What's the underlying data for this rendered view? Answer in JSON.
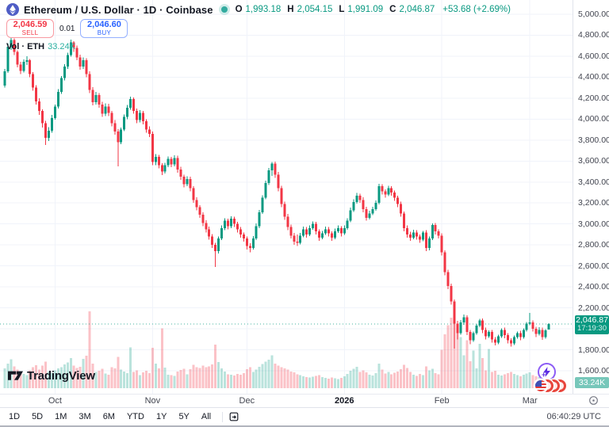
{
  "header": {
    "symbol_title": "Ethereum / U.S. Dollar · 1D · Coinbase",
    "ohlc": [
      {
        "label": "O",
        "value": "1,993.18"
      },
      {
        "label": "H",
        "value": "2,054.15"
      },
      {
        "label": "L",
        "value": "1,991.09"
      },
      {
        "label": "C",
        "value": "2,046.87"
      }
    ],
    "change": "+53.68 (+2.69%)",
    "sell": {
      "price": "2,046.59",
      "label": "SELL"
    },
    "spread": "0.01",
    "buy": {
      "price": "2,046.60",
      "label": "BUY"
    },
    "volume_label": "Vol · ETH",
    "volume_value": "33.24K"
  },
  "price_axis": {
    "badge_price": "2,046.87",
    "badge_countdown": "17:19:30",
    "volume_badge": "33.24K"
  },
  "toolbar": {
    "ranges": [
      "1D",
      "5D",
      "1M",
      "3M",
      "6M",
      "YTD",
      "1Y",
      "5Y",
      "All"
    ],
    "utc_time": "06:40:29 UTC"
  },
  "logo": {
    "text": "TradingView"
  },
  "icons": {
    "symbol": "ethereum-logo",
    "status": "market-open-dot",
    "go_to_date": "calendar-go-to-date",
    "axis_corner": "settings-gear",
    "boost": "lightning-bolt",
    "reactions": "overlapping-red-circles"
  },
  "chart_data": {
    "type": "candlestick+volume",
    "title": "Ethereum / U.S. Dollar",
    "symbol": "ETH/USD",
    "interval": "1D",
    "exchange": "Coinbase",
    "ylim": [
      1381,
      5136
    ],
    "grid": true,
    "style": {
      "up": "#089981",
      "down": "#f23645",
      "vol_up": "rgba(8,153,129,0.28)",
      "vol_down": "rgba(242,54,69,0.30)",
      "grid": "#f0f3fa"
    },
    "yticks": [
      {
        "price": 5000,
        "label": "5,000.00"
      },
      {
        "price": 4800,
        "label": "4,800.00"
      },
      {
        "price": 4600,
        "label": "4,600.00"
      },
      {
        "price": 4400,
        "label": "4,400.00"
      },
      {
        "price": 4200,
        "label": "4,200.00"
      },
      {
        "price": 4000,
        "label": "4,000.00"
      },
      {
        "price": 3800,
        "label": "3,800.00"
      },
      {
        "price": 3600,
        "label": "3,600.00"
      },
      {
        "price": 3400,
        "label": "3,400.00"
      },
      {
        "price": 3200,
        "label": "3,200.00"
      },
      {
        "price": 3000,
        "label": "3,000.00"
      },
      {
        "price": 2800,
        "label": "2,800.00"
      },
      {
        "price": 2600,
        "label": "2,600.00"
      },
      {
        "price": 2400,
        "label": "2,400.00"
      },
      {
        "price": 2200,
        "label": "2,200.00"
      },
      {
        "price": 2000,
        "label": ""
      },
      {
        "price": 1800,
        "label": "1,800.00"
      },
      {
        "price": 1600,
        "label": "1,600.00"
      }
    ],
    "month_ticks": [
      {
        "label": "Oct",
        "index": 16
      },
      {
        "label": "Nov",
        "index": 47
      },
      {
        "label": "Dec",
        "index": 77
      },
      {
        "label": "2026",
        "index": 108,
        "bold": true
      },
      {
        "label": "Feb",
        "index": 139
      },
      {
        "label": "Mar",
        "index": 167
      }
    ],
    "last": {
      "open": 1993.18,
      "high": 2054.15,
      "low": 1991.09,
      "close": 2046.87,
      "volume_k": 33.24
    },
    "marker": {
      "type": "dot",
      "candle_index": 2,
      "color": "#f23645"
    },
    "candles_format": [
      "open",
      "high",
      "low",
      "close",
      "volume_k"
    ],
    "candles": [
      [
        4320,
        4480,
        4300,
        4455,
        58
      ],
      [
        4455,
        4720,
        4440,
        4690,
        72
      ],
      [
        4690,
        4772,
        4660,
        4755,
        85
      ],
      [
        4755,
        4768,
        4610,
        4640,
        64
      ],
      [
        4640,
        4655,
        4495,
        4520,
        55
      ],
      [
        4520,
        4548,
        4430,
        4460,
        47
      ],
      [
        4460,
        4570,
        4445,
        4545,
        42
      ],
      [
        4545,
        4600,
        4515,
        4560,
        38
      ],
      [
        4560,
        4575,
        4400,
        4430,
        52
      ],
      [
        4430,
        4450,
        4270,
        4300,
        61
      ],
      [
        4300,
        4325,
        4140,
        4170,
        67
      ],
      [
        4170,
        4200,
        4040,
        4080,
        54
      ],
      [
        4080,
        4095,
        3920,
        3960,
        66
      ],
      [
        3960,
        3985,
        3755,
        3820,
        78
      ],
      [
        3820,
        3925,
        3790,
        3890,
        49
      ],
      [
        3890,
        4040,
        3870,
        4010,
        45
      ],
      [
        4010,
        4140,
        3995,
        4120,
        52
      ],
      [
        4120,
        4285,
        4100,
        4260,
        58
      ],
      [
        4260,
        4410,
        4240,
        4390,
        62
      ],
      [
        4390,
        4525,
        4370,
        4500,
        70
      ],
      [
        4500,
        4635,
        4480,
        4610,
        75
      ],
      [
        4610,
        4760,
        4595,
        4730,
        88
      ],
      [
        4730,
        4745,
        4640,
        4680,
        66
      ],
      [
        4680,
        4700,
        4560,
        4590,
        59
      ],
      [
        4590,
        4615,
        4470,
        4500,
        63
      ],
      [
        4500,
        4590,
        4480,
        4560,
        86
      ],
      [
        4560,
        4580,
        4400,
        4430,
        95
      ],
      [
        4430,
        4455,
        4250,
        4280,
        225
      ],
      [
        4280,
        4305,
        4130,
        4160,
        72
      ],
      [
        4160,
        4260,
        4140,
        4230,
        48
      ],
      [
        4230,
        4250,
        4110,
        4140,
        51
      ],
      [
        4140,
        4165,
        4020,
        4050,
        57
      ],
      [
        4050,
        4150,
        4030,
        4120,
        43
      ],
      [
        4120,
        4145,
        4030,
        4060,
        39
      ],
      [
        4060,
        4080,
        3930,
        3960,
        61
      ],
      [
        3960,
        3990,
        3850,
        3880,
        58
      ],
      [
        3880,
        3905,
        3550,
        3780,
        92
      ],
      [
        3780,
        3920,
        3760,
        3900,
        54
      ],
      [
        3900,
        4045,
        3885,
        4020,
        49
      ],
      [
        4020,
        4135,
        4000,
        4110,
        44
      ],
      [
        4110,
        4215,
        4090,
        4190,
        120
      ],
      [
        4190,
        4205,
        4050,
        4080,
        47
      ],
      [
        4080,
        4100,
        3960,
        3990,
        52
      ],
      [
        3990,
        4085,
        3970,
        4060,
        38
      ],
      [
        4060,
        4080,
        3950,
        3980,
        46
      ],
      [
        3980,
        4000,
        3870,
        3900,
        51
      ],
      [
        3900,
        3930,
        3830,
        3860,
        44
      ],
      [
        3860,
        3880,
        3560,
        3590,
        118
      ],
      [
        3590,
        3665,
        3560,
        3640,
        72
      ],
      [
        3640,
        3660,
        3530,
        3560,
        58
      ],
      [
        3560,
        3580,
        3465,
        3500,
        175
      ],
      [
        3500,
        3585,
        3480,
        3560,
        60
      ],
      [
        3560,
        3645,
        3540,
        3620,
        40
      ],
      [
        3620,
        3640,
        3540,
        3570,
        38
      ],
      [
        3570,
        3655,
        3550,
        3630,
        36
      ],
      [
        3630,
        3650,
        3490,
        3520,
        49
      ],
      [
        3520,
        3545,
        3420,
        3450,
        53
      ],
      [
        3450,
        3470,
        3350,
        3380,
        57
      ],
      [
        3380,
        3455,
        3360,
        3430,
        41
      ],
      [
        3430,
        3450,
        3310,
        3340,
        56
      ],
      [
        3340,
        3360,
        3200,
        3230,
        68
      ],
      [
        3230,
        3255,
        3130,
        3160,
        62
      ],
      [
        3160,
        3180,
        3060,
        3090,
        59
      ],
      [
        3090,
        3110,
        2980,
        3010,
        66
      ],
      [
        3010,
        3035,
        2920,
        2950,
        61
      ],
      [
        2950,
        2975,
        2850,
        2880,
        64
      ],
      [
        2880,
        2905,
        2770,
        2800,
        70
      ],
      [
        2800,
        2820,
        2590,
        2740,
        128
      ],
      [
        2740,
        2880,
        2720,
        2860,
        77
      ],
      [
        2860,
        2985,
        2845,
        2960,
        58
      ],
      [
        2960,
        3055,
        2940,
        3030,
        49
      ],
      [
        3030,
        3050,
        2950,
        2980,
        41
      ],
      [
        2980,
        3075,
        2960,
        3050,
        39
      ],
      [
        3050,
        3070,
        2970,
        3000,
        37
      ],
      [
        3000,
        3020,
        2920,
        2950,
        42
      ],
      [
        2950,
        2970,
        2870,
        2900,
        40
      ],
      [
        2900,
        2920,
        2830,
        2860,
        44
      ],
      [
        2860,
        2880,
        2755,
        2790,
        56
      ],
      [
        2790,
        2815,
        2730,
        2770,
        62
      ],
      [
        2770,
        2885,
        2755,
        2860,
        48
      ],
      [
        2860,
        3005,
        2845,
        2980,
        54
      ],
      [
        2980,
        3135,
        2960,
        3110,
        63
      ],
      [
        3110,
        3275,
        3095,
        3250,
        71
      ],
      [
        3250,
        3415,
        3235,
        3390,
        78
      ],
      [
        3390,
        3535,
        3370,
        3510,
        84
      ],
      [
        3510,
        3590,
        3460,
        3575,
        96
      ],
      [
        3575,
        3595,
        3440,
        3470,
        72
      ],
      [
        3470,
        3495,
        3310,
        3340,
        66
      ],
      [
        3340,
        3365,
        3160,
        3190,
        61
      ],
      [
        3190,
        3215,
        3040,
        3070,
        58
      ],
      [
        3070,
        3095,
        2940,
        2970,
        54
      ],
      [
        2970,
        2995,
        2860,
        2890,
        49
      ],
      [
        2890,
        2915,
        2800,
        2830,
        46
      ],
      [
        2830,
        2900,
        2790,
        2820,
        41
      ],
      [
        2820,
        2915,
        2805,
        2890,
        38
      ],
      [
        2890,
        2975,
        2875,
        2950,
        35
      ],
      [
        2950,
        2970,
        2870,
        2900,
        33
      ],
      [
        2900,
        2985,
        2885,
        2960,
        31
      ],
      [
        2960,
        3025,
        2945,
        3000,
        34
      ],
      [
        3000,
        3020,
        2900,
        2930,
        36
      ],
      [
        2930,
        2950,
        2840,
        2870,
        38
      ],
      [
        2870,
        2935,
        2855,
        2910,
        32
      ],
      [
        2910,
        2975,
        2895,
        2950,
        30
      ],
      [
        2950,
        2970,
        2880,
        2910,
        28
      ],
      [
        2910,
        2930,
        2840,
        2870,
        31
      ],
      [
        2870,
        2955,
        2855,
        2930,
        29
      ],
      [
        2930,
        2985,
        2915,
        2960,
        27
      ],
      [
        2960,
        2980,
        2880,
        2910,
        30
      ],
      [
        2910,
        2985,
        2895,
        2960,
        35
      ],
      [
        2960,
        3055,
        2945,
        3030,
        42
      ],
      [
        3030,
        3155,
        3015,
        3130,
        51
      ],
      [
        3130,
        3235,
        3115,
        3210,
        57
      ],
      [
        3210,
        3295,
        3195,
        3270,
        63
      ],
      [
        3270,
        3290,
        3200,
        3230,
        48
      ],
      [
        3230,
        3255,
        3110,
        3140,
        52
      ],
      [
        3140,
        3165,
        3030,
        3060,
        46
      ],
      [
        3060,
        3125,
        3045,
        3100,
        39
      ],
      [
        3100,
        3165,
        3085,
        3140,
        37
      ],
      [
        3140,
        3225,
        3125,
        3200,
        44
      ],
      [
        3200,
        3385,
        3185,
        3360,
        72
      ],
      [
        3360,
        3380,
        3280,
        3310,
        54
      ],
      [
        3310,
        3330,
        3250,
        3280,
        43
      ],
      [
        3280,
        3365,
        3265,
        3340,
        47
      ],
      [
        3340,
        3360,
        3270,
        3300,
        41
      ],
      [
        3300,
        3320,
        3220,
        3250,
        45
      ],
      [
        3250,
        3270,
        3160,
        3190,
        49
      ],
      [
        3190,
        3215,
        3070,
        3100,
        56
      ],
      [
        3100,
        3120,
        2930,
        2960,
        68
      ],
      [
        2960,
        2985,
        2870,
        2900,
        59
      ],
      [
        2900,
        2925,
        2840,
        2870,
        47
      ],
      [
        2870,
        2945,
        2855,
        2920,
        39
      ],
      [
        2920,
        2940,
        2850,
        2880,
        36
      ],
      [
        2880,
        2900,
        2820,
        2850,
        42
      ],
      [
        2850,
        2935,
        2835,
        2920,
        38
      ],
      [
        2920,
        2940,
        2740,
        2770,
        64
      ],
      [
        2770,
        2880,
        2750,
        2860,
        52
      ],
      [
        2860,
        3005,
        2845,
        2990,
        57
      ],
      [
        2990,
        3010,
        2900,
        2930,
        44
      ],
      [
        2930,
        2950,
        2860,
        2890,
        41
      ],
      [
        2890,
        2910,
        2700,
        2730,
        112
      ],
      [
        2730,
        2750,
        2510,
        2540,
        158
      ],
      [
        2540,
        2565,
        2380,
        2410,
        184
      ],
      [
        2410,
        2430,
        2230,
        2260,
        206
      ],
      [
        2260,
        2280,
        1810,
        2050,
        232
      ],
      [
        2050,
        2075,
        1900,
        1960,
        168
      ],
      [
        1960,
        2085,
        1945,
        2060,
        150
      ],
      [
        2060,
        2135,
        2040,
        2110,
        96
      ],
      [
        2110,
        2130,
        1940,
        1970,
        140
      ],
      [
        1970,
        1990,
        1855,
        1890,
        79
      ],
      [
        1890,
        1975,
        1875,
        1960,
        110
      ],
      [
        1960,
        2045,
        1945,
        2030,
        58
      ],
      [
        2030,
        2095,
        2015,
        2080,
        130
      ],
      [
        2080,
        2100,
        1960,
        1990,
        88
      ],
      [
        1990,
        2010,
        1900,
        1930,
        52
      ],
      [
        1930,
        1985,
        1915,
        1970,
        115
      ],
      [
        1970,
        1990,
        1870,
        1900,
        47
      ],
      [
        1900,
        1920,
        1840,
        1870,
        51
      ],
      [
        1870,
        1945,
        1855,
        1930,
        39
      ],
      [
        1930,
        2005,
        1915,
        1990,
        37
      ],
      [
        1990,
        2010,
        1910,
        1940,
        41
      ],
      [
        1940,
        1960,
        1860,
        1890,
        44
      ],
      [
        1890,
        1910,
        1830,
        1860,
        48
      ],
      [
        1860,
        1935,
        1845,
        1920,
        42
      ],
      [
        1920,
        1975,
        1905,
        1960,
        38
      ],
      [
        1960,
        1980,
        1890,
        1920,
        35
      ],
      [
        1920,
        2005,
        1905,
        1990,
        39
      ],
      [
        1990,
        2065,
        1975,
        2050,
        43
      ],
      [
        2050,
        2150,
        2035,
        2060,
        46
      ],
      [
        2060,
        2080,
        1975,
        2000,
        38
      ],
      [
        2000,
        2020,
        1920,
        1950,
        35
      ],
      [
        1950,
        2015,
        1935,
        1990,
        32
      ],
      [
        1990,
        2010,
        1895,
        1920,
        36
      ],
      [
        1920,
        1995,
        1905,
        1985,
        34
      ],
      [
        1993.18,
        2054.15,
        1991.09,
        2046.87,
        33.24
      ]
    ]
  }
}
